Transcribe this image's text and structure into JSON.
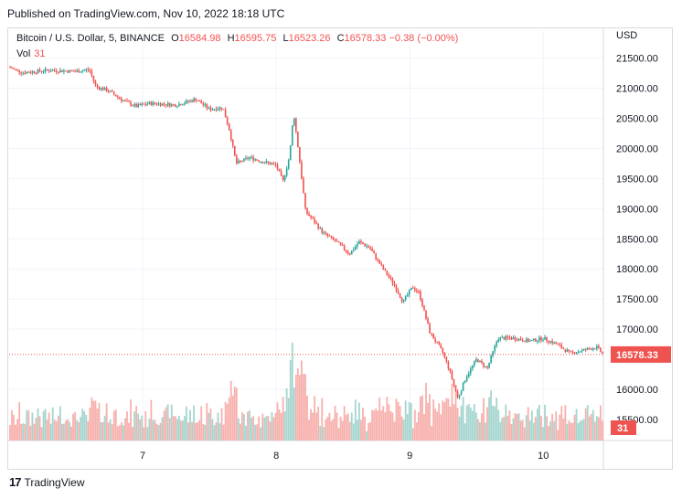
{
  "header": {
    "published": "Published on TradingView.com, Nov 10, 2022 18:18 UTC"
  },
  "legend": {
    "symbol": "Bitcoin / U.S. Dollar, 5, BINANCE",
    "o_label": "O",
    "o": "16584.98",
    "h_label": "H",
    "h": "16595.75",
    "l_label": "L",
    "l": "16523.26",
    "c_label": "C",
    "c": "16578.33",
    "change": "−0.38 (−0.00%)",
    "vol_label": "Vol",
    "vol": "31"
  },
  "footer": {
    "brand": "TradingView",
    "logo": "17"
  },
  "colors": {
    "up": "#26a69a",
    "down": "#ef5350",
    "vol_up": "#a5d6cf",
    "vol_down": "#f7b1ad",
    "price_line": "#ef5350",
    "grid": "#f0f3fa"
  },
  "chart_data": {
    "type": "candlestick",
    "currency": "USD",
    "y_ticks": [
      21500,
      21000,
      20500,
      20000,
      19500,
      19000,
      18500,
      18000,
      17500,
      17000,
      16000,
      15500
    ],
    "y_tick_labels": [
      "21500.00",
      "21000.00",
      "20500.00",
      "20000.00",
      "19500.00",
      "19000.00",
      "18500.00",
      "18000.00",
      "17500.00",
      "17000.00",
      "16000.00",
      "15500.00"
    ],
    "ylim": [
      15150,
      21950
    ],
    "x_ticks": [
      "7",
      "8",
      "9",
      "10"
    ],
    "x_tick_days": [
      7,
      8,
      9,
      10
    ],
    "x_range_days": [
      6.0,
      10.45
    ],
    "last_price": 16578.33,
    "last_price_label": "16578.33",
    "volume_label": "31",
    "price_path": [
      [
        6.0,
        21350
      ],
      [
        6.1,
        21260
      ],
      [
        6.3,
        21300
      ],
      [
        6.5,
        21280
      ],
      [
        6.6,
        21310
      ],
      [
        6.65,
        21030
      ],
      [
        6.75,
        20950
      ],
      [
        6.85,
        20800
      ],
      [
        6.95,
        20700
      ],
      [
        7.05,
        20750
      ],
      [
        7.15,
        20740
      ],
      [
        7.25,
        20720
      ],
      [
        7.4,
        20820
      ],
      [
        7.5,
        20650
      ],
      [
        7.6,
        20680
      ],
      [
        7.65,
        20300
      ],
      [
        7.7,
        19750
      ],
      [
        7.75,
        19800
      ],
      [
        7.8,
        19850
      ],
      [
        7.9,
        19780
      ],
      [
        8.0,
        19720
      ],
      [
        8.05,
        19450
      ],
      [
        8.1,
        19870
      ],
      [
        8.13,
        20600
      ],
      [
        8.17,
        19900
      ],
      [
        8.22,
        18950
      ],
      [
        8.28,
        18800
      ],
      [
        8.35,
        18600
      ],
      [
        8.45,
        18450
      ],
      [
        8.55,
        18250
      ],
      [
        8.62,
        18450
      ],
      [
        8.7,
        18350
      ],
      [
        8.8,
        18000
      ],
      [
        8.88,
        17750
      ],
      [
        8.95,
        17450
      ],
      [
        9.02,
        17700
      ],
      [
        9.07,
        17600
      ],
      [
        9.15,
        16950
      ],
      [
        9.25,
        16600
      ],
      [
        9.3,
        16300
      ],
      [
        9.36,
        15850
      ],
      [
        9.42,
        16200
      ],
      [
        9.5,
        16500
      ],
      [
        9.58,
        16350
      ],
      [
        9.66,
        16850
      ],
      [
        9.78,
        16850
      ],
      [
        9.9,
        16800
      ],
      [
        10.0,
        16850
      ],
      [
        10.1,
        16750
      ],
      [
        10.2,
        16600
      ],
      [
        10.3,
        16650
      ],
      [
        10.4,
        16700
      ],
      [
        10.45,
        16578
      ]
    ]
  }
}
